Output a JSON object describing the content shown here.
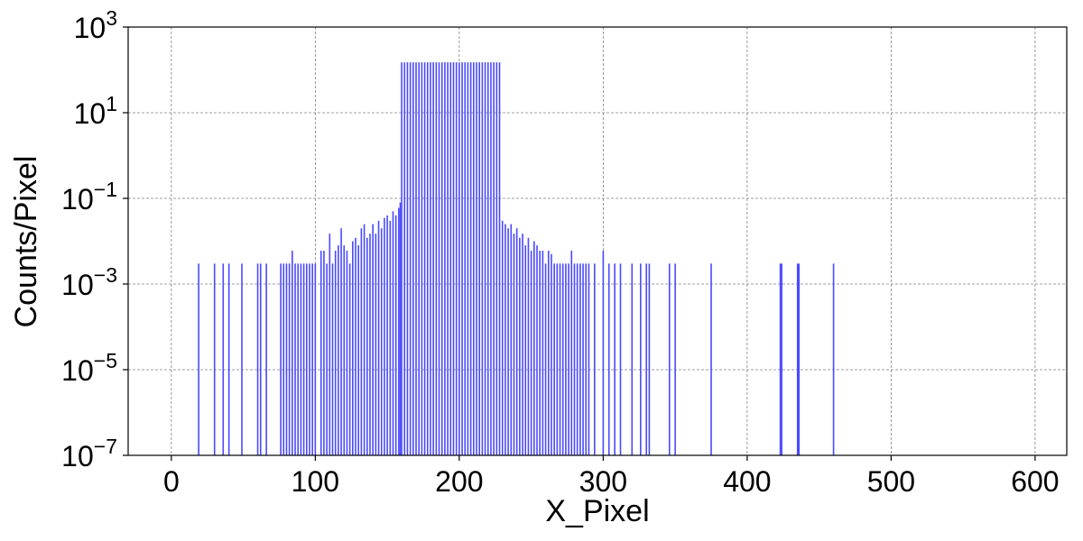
{
  "chart_data": {
    "type": "bar",
    "title": "",
    "xlabel": "X_Pixel",
    "ylabel": "Counts/Pixel",
    "yscale": "log",
    "xlim": [
      -30,
      622
    ],
    "ylim": [
      1e-07,
      1000
    ],
    "grid": true,
    "bar_color": "#4a4aff",
    "x_ticks": [
      0,
      100,
      200,
      300,
      400,
      500,
      600
    ],
    "x_tick_labels": [
      "0",
      "100",
      "200",
      "300",
      "400",
      "500",
      "600"
    ],
    "y_ticks": [
      1e-07,
      1e-05,
      0.001,
      0.1,
      10,
      1000
    ],
    "y_tick_labels": [
      {
        "base": "10",
        "exp": "−7"
      },
      {
        "base": "10",
        "exp": "−5"
      },
      {
        "base": "10",
        "exp": "−3"
      },
      {
        "base": "10",
        "exp": "−1"
      },
      {
        "base": "10",
        "exp": "1"
      },
      {
        "base": "10",
        "exp": "3"
      }
    ],
    "series": [
      {
        "x": [
          19,
          30,
          36,
          40,
          49,
          60,
          62,
          66,
          76,
          78,
          80,
          82,
          84,
          86,
          88,
          90,
          92,
          94,
          96,
          98,
          100,
          104,
          106,
          108,
          110,
          112,
          114,
          116,
          118,
          120,
          122,
          124,
          126,
          128,
          130,
          132,
          134,
          136,
          138,
          140,
          142,
          144,
          146,
          148,
          150,
          152,
          154,
          156,
          158,
          159,
          160,
          162,
          164,
          166,
          168,
          170,
          172,
          174,
          176,
          178,
          180,
          182,
          184,
          186,
          188,
          190,
          192,
          194,
          196,
          198,
          200,
          202,
          204,
          206,
          208,
          210,
          212,
          214,
          216,
          218,
          220,
          222,
          224,
          226,
          228,
          230,
          232,
          234,
          236,
          238,
          240,
          242,
          244,
          246,
          248,
          250,
          252,
          254,
          256,
          258,
          260,
          262,
          264,
          266,
          268,
          270,
          272,
          274,
          276,
          278,
          280,
          282,
          284,
          286,
          288,
          290,
          294,
          300,
          304,
          308,
          312,
          320,
          326,
          330,
          332,
          346,
          350,
          375,
          423,
          424,
          435,
          436,
          460
        ],
        "values": [
          0.003,
          0.003,
          0.003,
          0.003,
          0.003,
          0.003,
          0.003,
          0.003,
          0.003,
          0.003,
          0.003,
          0.003,
          0.006,
          0.003,
          0.003,
          0.003,
          0.003,
          0.003,
          0.003,
          0.003,
          0.003,
          0.006,
          0.006,
          0.003,
          0.015,
          0.003,
          0.006,
          0.008,
          0.02,
          0.008,
          0.006,
          0.003,
          0.01,
          0.012,
          0.008,
          0.02,
          0.025,
          0.012,
          0.015,
          0.025,
          0.015,
          0.03,
          0.02,
          0.035,
          0.04,
          0.03,
          0.05,
          0.04,
          0.06,
          0.08,
          150,
          150,
          150,
          150,
          150,
          150,
          150,
          150,
          150,
          150,
          150,
          150,
          150,
          150,
          150,
          150,
          150,
          150,
          150,
          150,
          150,
          150,
          150,
          150,
          150,
          150,
          150,
          150,
          150,
          150,
          150,
          150,
          150,
          150,
          150,
          0.03,
          0.025,
          0.02,
          0.025,
          0.015,
          0.02,
          0.012,
          0.015,
          0.008,
          0.012,
          0.006,
          0.01,
          0.008,
          0.006,
          0.006,
          0.003,
          0.006,
          0.005,
          0.003,
          0.003,
          0.003,
          0.003,
          0.003,
          0.003,
          0.006,
          0.003,
          0.003,
          0.003,
          0.003,
          0.003,
          0.003,
          0.003,
          0.006,
          0.003,
          0.003,
          0.003,
          0.003,
          0.003,
          0.003,
          0.003,
          0.003,
          0.003,
          0.003,
          0.003,
          0.003,
          0.003,
          0.003,
          0.003
        ]
      }
    ]
  }
}
